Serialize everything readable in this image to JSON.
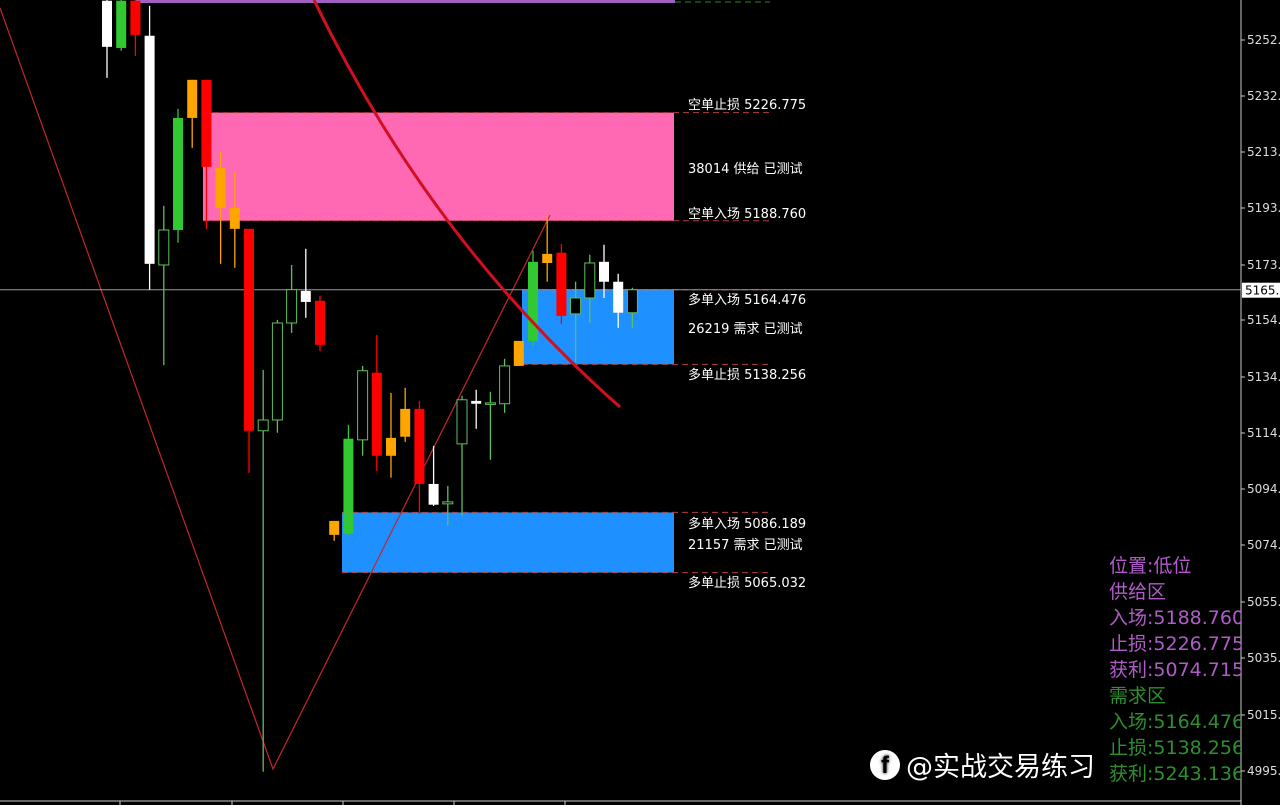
{
  "chart_data": {
    "type": "candlestick",
    "price_axis": {
      "tick_labels": [
        "5252.",
        "5232.",
        "5213.",
        "5193.",
        "5173.",
        "5154.",
        "5134.",
        "5114.",
        "5094.",
        "5074.",
        "5055.",
        "5035.",
        "5015.",
        "4995."
      ],
      "range": [
        4995,
        5252.3
      ],
      "current_price_label": "5165.",
      "current_price": 5164.5
    },
    "candles": [
      {
        "o": 5249.9,
        "h": 5268,
        "l": 5239.0,
        "c": 5266.1,
        "style": "white"
      },
      {
        "o": 5249.5,
        "h": 5268,
        "l": 5248.5,
        "c": 5266.1,
        "style": "green"
      },
      {
        "o": 5266.1,
        "h": 5268,
        "l": 5246.7,
        "c": 5254.1,
        "style": "red"
      },
      {
        "o": 5173.6,
        "h": 5264.3,
        "l": 5164.5,
        "c": 5253.8,
        "style": "white"
      },
      {
        "o": 5173.2,
        "h": 5194.0,
        "l": 5138.0,
        "c": 5185.5,
        "style": "hollow"
      },
      {
        "o": 5185.5,
        "h": 5228.1,
        "l": 5181.0,
        "c": 5224.9,
        "style": "green"
      },
      {
        "o": 5238.3,
        "h": 5238.3,
        "l": 5214.4,
        "c": 5224.9,
        "style": "orange"
      },
      {
        "o": 5238.3,
        "h": 5238.3,
        "l": 5185.9,
        "c": 5207.7,
        "style": "red"
      },
      {
        "o": 5207.3,
        "h": 5213.0,
        "l": 5173.6,
        "c": 5193.3,
        "style": "orange"
      },
      {
        "o": 5193.3,
        "h": 5205.9,
        "l": 5172.2,
        "c": 5185.9,
        "style": "orange"
      },
      {
        "o": 5185.9,
        "h": 5185.9,
        "l": 5100.1,
        "c": 5114.9,
        "style": "red"
      },
      {
        "o": 5114.9,
        "h": 5136.3,
        "l": 4995.0,
        "c": 5118.7,
        "style": "hollow"
      },
      {
        "o": 5118.7,
        "h": 5153.9,
        "l": 5114.2,
        "c": 5152.8,
        "style": "hollow"
      },
      {
        "o": 5152.8,
        "h": 5173.2,
        "l": 5149.3,
        "c": 5164.5,
        "style": "hollow"
      },
      {
        "o": 5160.2,
        "h": 5178.9,
        "l": 5154.6,
        "c": 5164.1,
        "style": "white"
      },
      {
        "o": 5160.6,
        "h": 5162.3,
        "l": 5143.0,
        "c": 5145.1,
        "style": "red"
      },
      {
        "o": 5083.2,
        "h": 5083.2,
        "l": 5076.2,
        "c": 5078.3,
        "style": "orange"
      },
      {
        "o": 5078.7,
        "h": 5117.0,
        "l": 5078.0,
        "c": 5112.1,
        "style": "green"
      },
      {
        "o": 5111.7,
        "h": 5137.7,
        "l": 5106.1,
        "c": 5136.0,
        "style": "hollow"
      },
      {
        "o": 5135.3,
        "h": 5148.6,
        "l": 5100.8,
        "c": 5106.1,
        "style": "red"
      },
      {
        "o": 5112.4,
        "h": 5128.2,
        "l": 5098.4,
        "c": 5106.1,
        "style": "orange"
      },
      {
        "o": 5122.6,
        "h": 5130.0,
        "l": 5111.0,
        "c": 5112.8,
        "style": "orange"
      },
      {
        "o": 5122.6,
        "h": 5125.4,
        "l": 5085.7,
        "c": 5096.2,
        "style": "red"
      },
      {
        "o": 5088.9,
        "h": 5109.6,
        "l": 5088.5,
        "c": 5096.2,
        "style": "white"
      },
      {
        "o": 5089.2,
        "h": 5095.5,
        "l": 5081.5,
        "c": 5089.9,
        "style": "hollow"
      },
      {
        "o": 5110.3,
        "h": 5127.2,
        "l": 5085.0,
        "c": 5125.8,
        "style": "hollow"
      },
      {
        "o": 5124.4,
        "h": 5129.3,
        "l": 5115.6,
        "c": 5125.4,
        "style": "white"
      },
      {
        "o": 5124.4,
        "h": 5128.6,
        "l": 5104.7,
        "c": 5124.7,
        "style": "hollow"
      },
      {
        "o": 5124.4,
        "h": 5140.2,
        "l": 5121.2,
        "c": 5137.7,
        "style": "hollow"
      },
      {
        "o": 5146.5,
        "h": 5146.5,
        "l": 5137.7,
        "c": 5137.7,
        "style": "orange"
      },
      {
        "o": 5146.5,
        "h": 5178.2,
        "l": 5144.8,
        "c": 5174.3,
        "style": "green"
      },
      {
        "o": 5177.1,
        "h": 5190.5,
        "l": 5167.3,
        "c": 5173.9,
        "style": "orange"
      },
      {
        "o": 5177.5,
        "h": 5180.6,
        "l": 5152.5,
        "c": 5155.3,
        "style": "red"
      },
      {
        "o": 5156.0,
        "h": 5167.3,
        "l": 5139.1,
        "c": 5161.6,
        "style": "hollow"
      },
      {
        "o": 5161.6,
        "h": 5176.8,
        "l": 5152.8,
        "c": 5173.9,
        "style": "hollow"
      },
      {
        "o": 5167.3,
        "h": 5180.3,
        "l": 5161.6,
        "c": 5174.3,
        "style": "white"
      },
      {
        "o": 5156.4,
        "h": 5170.1,
        "l": 5151.1,
        "c": 5167.3,
        "style": "white"
      },
      {
        "o": 5156.4,
        "h": 5165.2,
        "l": 5151.1,
        "c": 5164.5,
        "style": "hollow"
      }
    ],
    "zones": [
      {
        "kind": "supply",
        "top": 5226.775,
        "bottom": 5188.76,
        "color": "#ff69b4",
        "labels": [
          "空单止损 5226.775",
          "38014 供给 已测试",
          "空单入场 5188.760"
        ]
      },
      {
        "kind": "demand",
        "top": 5164.476,
        "bottom": 5138.256,
        "color": "#1e90ff",
        "labels": [
          "多单入场 5164.476",
          "26219 需求 已测试",
          "多单止损 5138.256"
        ]
      },
      {
        "kind": "demand",
        "top": 5086.189,
        "bottom": 5065.032,
        "color": "#1e90ff",
        "labels": [
          "多单入场 5086.189",
          "21157 需求 已测试",
          "多单止损 5065.032"
        ]
      }
    ],
    "colors": {
      "background": "#000000",
      "red": "#ff0000",
      "green": "#32c832",
      "orange": "#ffa500",
      "white": "#ffffff",
      "hollow": "#5fbf5f",
      "zigzag": "#c0282a",
      "curve": "#d0101e"
    }
  },
  "info_panel": {
    "position": "位置:低位",
    "supply_title": "供给区",
    "supply_entry": "入场:5188.760",
    "supply_stop": "止损:5226.775",
    "supply_target": "获利:5074.715",
    "demand_title": "需求区",
    "demand_entry": "入场:5164.476",
    "demand_stop": "止损:5138.256",
    "demand_target": "获利:5243.136"
  },
  "watermark": {
    "text": "@实战交易练习",
    "icon": "facebook-icon"
  }
}
